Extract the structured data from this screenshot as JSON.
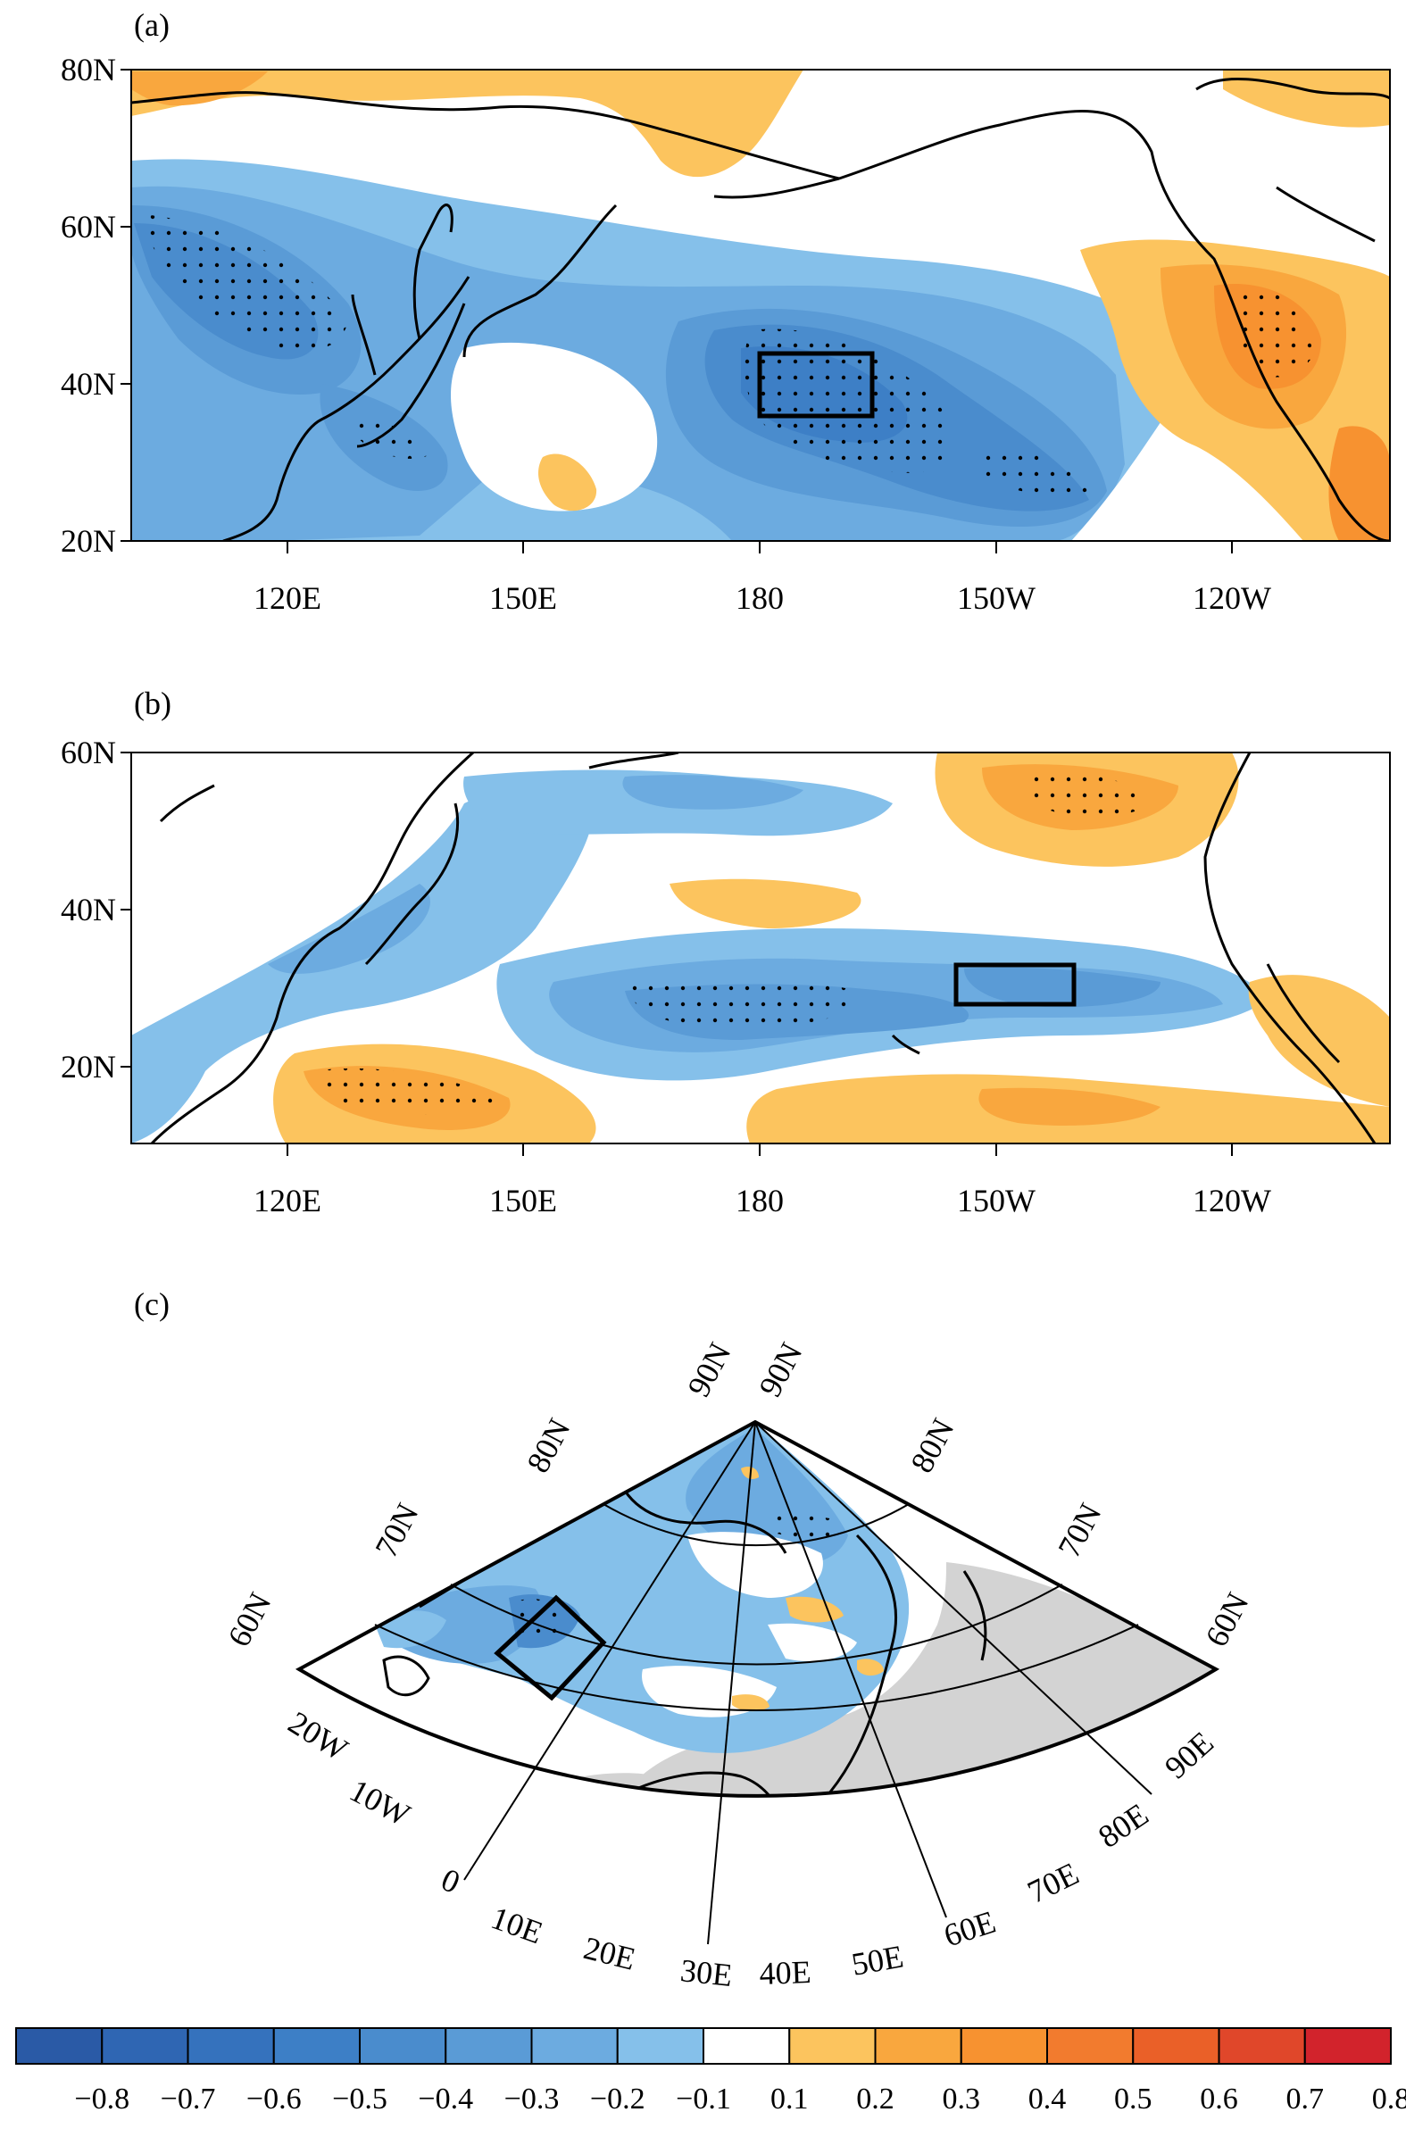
{
  "panels": {
    "a": {
      "letter": "(a)",
      "lat_labels": [
        "80N",
        "60N",
        "40N",
        "20N"
      ],
      "lon_labels": [
        "120E",
        "150E",
        "180",
        "150W",
        "120W"
      ]
    },
    "b": {
      "letter": "(b)",
      "lat_labels": [
        "60N",
        "40N",
        "20N"
      ],
      "lon_labels": [
        "120E",
        "150E",
        "180",
        "150W",
        "120W"
      ]
    },
    "c": {
      "letter": "(c)",
      "lat_labels_left": [
        "60N",
        "70N",
        "80N",
        "90N"
      ],
      "lat_labels_right": [
        "90N",
        "80N",
        "70N",
        "60N"
      ],
      "lon_labels": [
        "20W",
        "10W",
        "0",
        "10E",
        "20E",
        "30E",
        "40E",
        "50E",
        "60E",
        "70E",
        "80E",
        "90E"
      ]
    }
  },
  "colorbar": {
    "labels": [
      "−0.8",
      "−0.7",
      "−0.6",
      "−0.5",
      "−0.4",
      "−0.3",
      "−0.2",
      "−0.1",
      "0.1",
      "0.2",
      "0.3",
      "0.4",
      "0.5",
      "0.6",
      "0.7",
      "0.8"
    ],
    "colors": [
      "#2a5aa6",
      "#2f66b3",
      "#3572bd",
      "#3d7fc6",
      "#4a8ccd",
      "#5a9bd6",
      "#6cabe0",
      "#85c0ea",
      "#ffffff",
      "#fcc45e",
      "#f9a73e",
      "#f79230",
      "#f27b2e",
      "#ea6028",
      "#e0472a",
      "#d2232c"
    ]
  },
  "colors": {
    "land_grey": "#d3d3d3",
    "stipple": "#000000"
  }
}
